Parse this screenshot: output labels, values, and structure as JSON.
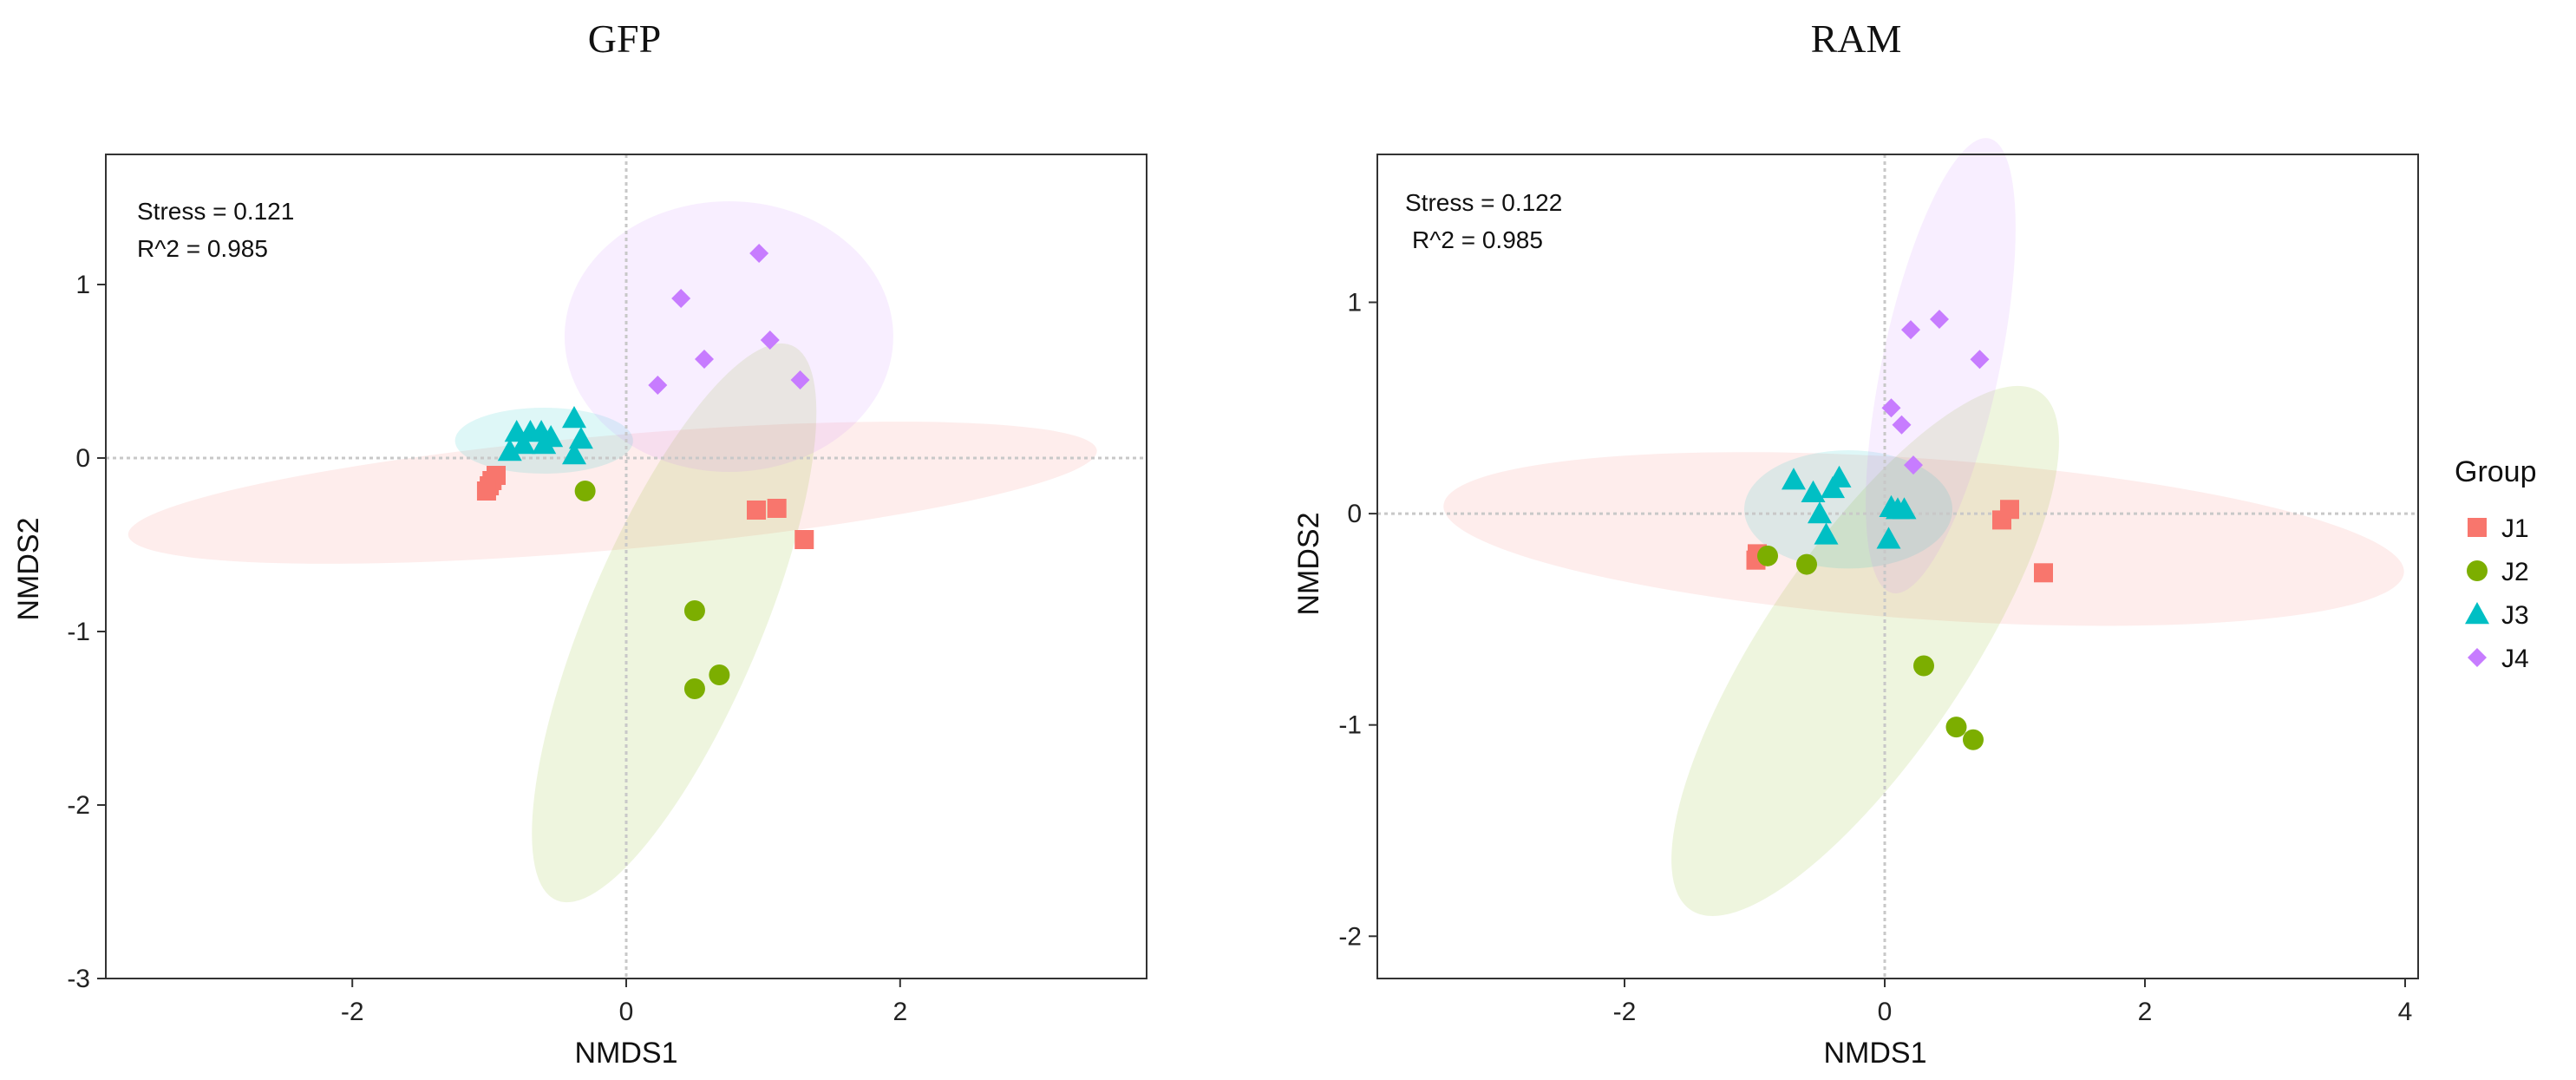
{
  "chart_data": [
    {
      "type": "scatter",
      "title": "GFP",
      "xlabel": "NMDS1",
      "ylabel": "NMDS2",
      "xlim": [
        -3.8,
        3.8
      ],
      "ylim": [
        -3.0,
        1.75
      ],
      "xticks": [
        -2,
        0,
        2
      ],
      "yticks": [
        -3,
        -2,
        -1,
        0,
        1
      ],
      "stress": "Stress = 0.121",
      "r2": "R^2 = 0.985",
      "grid": false,
      "series": [
        {
          "name": "J1",
          "color": "#F8766D",
          "shape": "square",
          "points": [
            [
              -0.95,
              -0.1
            ],
            [
              -0.98,
              -0.13
            ],
            [
              -1.0,
              -0.16
            ],
            [
              -1.02,
              -0.19
            ],
            [
              0.95,
              -0.3
            ],
            [
              1.1,
              -0.29
            ],
            [
              1.3,
              -0.47
            ]
          ],
          "ellipse": {
            "cx": -0.1,
            "cy": -0.2,
            "rx": 3.55,
            "ry": 0.33,
            "angle_deg": -5
          }
        },
        {
          "name": "J2",
          "color": "#7CAE00",
          "shape": "circle",
          "points": [
            [
              -0.3,
              -0.19
            ],
            [
              0.5,
              -0.88
            ],
            [
              0.68,
              -1.25
            ],
            [
              0.5,
              -1.33
            ]
          ],
          "ellipse": {
            "cx": 0.35,
            "cy": -0.95,
            "rx": 2.2,
            "ry": 0.5,
            "angle_deg": -67
          }
        },
        {
          "name": "J3",
          "color": "#00BFC4",
          "shape": "triangle",
          "points": [
            [
              -0.8,
              0.15
            ],
            [
              -0.75,
              0.08
            ],
            [
              -0.7,
              0.15
            ],
            [
              -0.62,
              0.15
            ],
            [
              -0.55,
              0.12
            ],
            [
              -0.6,
              0.08
            ],
            [
              -0.85,
              0.04
            ],
            [
              -0.38,
              0.23
            ],
            [
              -0.33,
              0.11
            ],
            [
              -0.38,
              0.02
            ]
          ],
          "ellipse": {
            "cx": -0.6,
            "cy": 0.1,
            "rx": 0.65,
            "ry": 0.19,
            "angle_deg": 0
          }
        },
        {
          "name": "J4",
          "color": "#C77CFF",
          "shape": "diamond",
          "points": [
            [
              0.4,
              0.92
            ],
            [
              0.97,
              1.18
            ],
            [
              1.05,
              0.68
            ],
            [
              0.57,
              0.57
            ],
            [
              0.23,
              0.42
            ],
            [
              1.27,
              0.45
            ]
          ],
          "ellipse": {
            "cx": 0.75,
            "cy": 0.7,
            "rx": 1.2,
            "ry": 0.78,
            "angle_deg": 0
          }
        }
      ]
    },
    {
      "type": "scatter",
      "title": "RAM",
      "xlabel": "NMDS1",
      "ylabel": "NMDS2",
      "xlim": [
        -3.9,
        4.1
      ],
      "ylim": [
        -2.2,
        1.7
      ],
      "xticks": [
        -2,
        0,
        2,
        4
      ],
      "yticks": [
        -2,
        -1,
        0,
        1
      ],
      "stress": "Stress = 0.122",
      "r2": "R^2 = 0.985",
      "grid": false,
      "series": [
        {
          "name": "J1",
          "color": "#F8766D",
          "shape": "square",
          "points": [
            [
              -0.98,
              -0.19
            ],
            [
              -0.99,
              -0.22
            ],
            [
              0.9,
              -0.03
            ],
            [
              0.96,
              0.02
            ],
            [
              1.22,
              -0.28
            ]
          ],
          "ellipse": {
            "cx": 0.3,
            "cy": -0.12,
            "rx": 3.7,
            "ry": 0.38,
            "angle_deg": 4
          }
        },
        {
          "name": "J2",
          "color": "#7CAE00",
          "shape": "circle",
          "points": [
            [
              -0.9,
              -0.2
            ],
            [
              -0.6,
              -0.24
            ],
            [
              0.3,
              -0.72
            ],
            [
              0.55,
              -1.01
            ],
            [
              0.68,
              -1.07
            ]
          ],
          "ellipse": {
            "cx": -0.15,
            "cy": -0.65,
            "rx": 2.4,
            "ry": 0.48,
            "angle_deg": -56
          }
        },
        {
          "name": "J3",
          "color": "#00BFC4",
          "shape": "triangle",
          "points": [
            [
              -0.7,
              0.16
            ],
            [
              -0.55,
              0.1
            ],
            [
              -0.4,
              0.12
            ],
            [
              -0.35,
              0.17
            ],
            [
              -0.5,
              0.0
            ],
            [
              -0.45,
              -0.1
            ],
            [
              0.05,
              0.03
            ],
            [
              0.15,
              0.02
            ],
            [
              0.03,
              -0.12
            ],
            [
              0.1,
              0.02
            ]
          ],
          "ellipse": {
            "cx": -0.28,
            "cy": 0.02,
            "rx": 0.8,
            "ry": 0.28,
            "angle_deg": 0
          }
        },
        {
          "name": "J4",
          "color": "#C77CFF",
          "shape": "diamond",
          "points": [
            [
              0.2,
              0.87
            ],
            [
              0.42,
              0.92
            ],
            [
              0.73,
              0.73
            ],
            [
              0.05,
              0.5
            ],
            [
              0.13,
              0.42
            ],
            [
              0.22,
              0.23
            ]
          ],
          "ellipse": {
            "cx": 0.43,
            "cy": 0.7,
            "rx": 0.45,
            "ry": 1.1,
            "angle_deg": 12
          }
        }
      ]
    }
  ],
  "legend": {
    "title": "Group",
    "items": [
      {
        "label": "J1",
        "color": "#F8766D",
        "shape": "square"
      },
      {
        "label": "J2",
        "color": "#7CAE00",
        "shape": "circle"
      },
      {
        "label": "J3",
        "color": "#00BFC4",
        "shape": "triangle"
      },
      {
        "label": "J4",
        "color": "#C77CFF",
        "shape": "diamond"
      }
    ]
  }
}
